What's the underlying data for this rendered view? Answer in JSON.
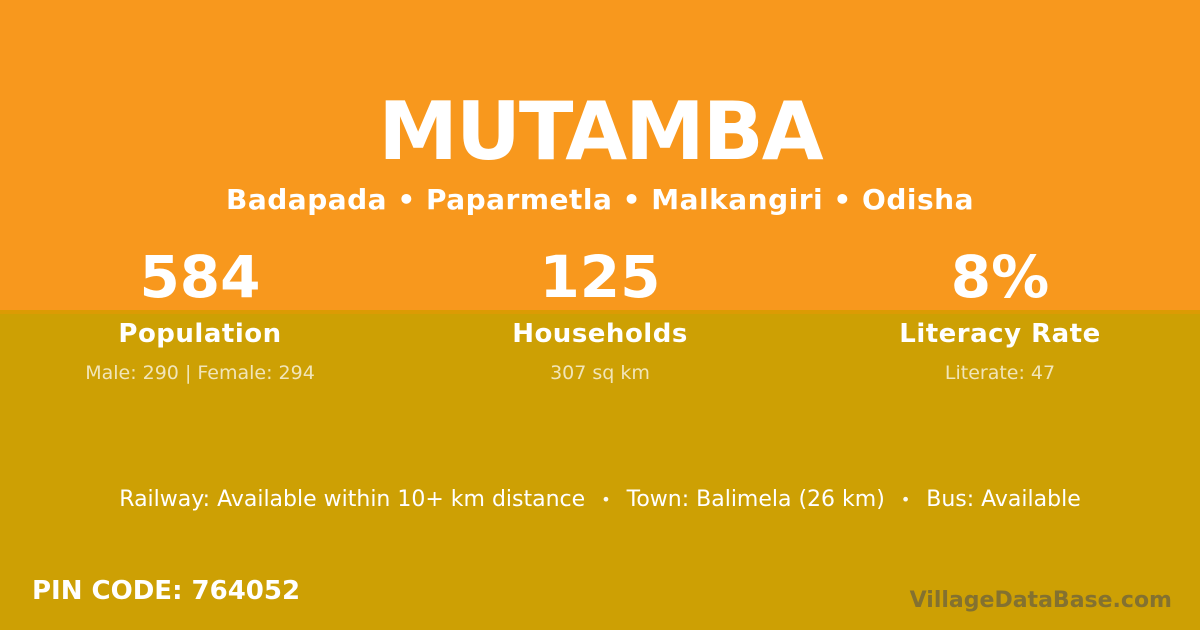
{
  "theme": {
    "orange": "#F8981D",
    "gold": "#CDA004",
    "divider": "#DC9B04",
    "text": "#FFFFFF",
    "muted_text": "rgba(255,255,255,0.72)",
    "watermark_gray": "rgba(82,82,78,0.60)"
  },
  "header": {
    "title": "MUTAMBA",
    "subtitle": "Badapada • Paparmetla • Malkangiri • Odisha"
  },
  "stats": [
    {
      "value": "584",
      "label": "Population",
      "sub": "Male: 290 | Female: 294"
    },
    {
      "value": "125",
      "label": "Households",
      "sub": "307 sq km"
    },
    {
      "value": "8%",
      "label": "Literacy Rate",
      "sub": "Literate: 47"
    }
  ],
  "amenities": {
    "railway": "Railway: Available within 10+ km distance",
    "town": "Town: Balimela (26 km)",
    "bus": "Bus: Available",
    "separator": "•"
  },
  "footer": {
    "pin_code": "PIN CODE: 764052",
    "watermark": "VillageDataBase.com"
  }
}
